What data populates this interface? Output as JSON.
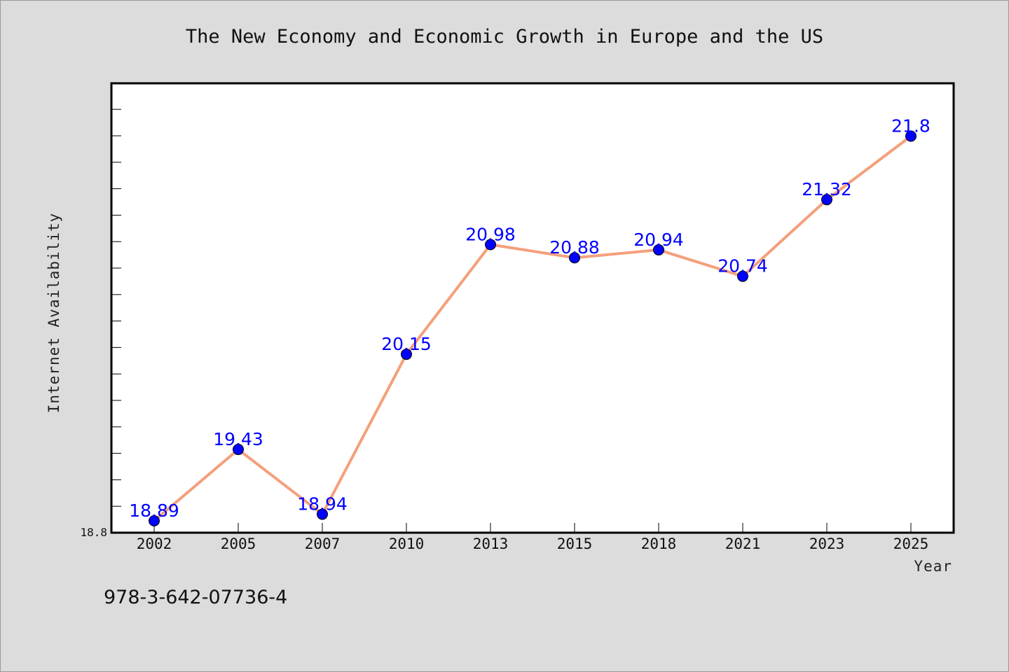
{
  "chart_data": {
    "type": "line",
    "title": "The New Economy and Economic Growth in Europe and the US",
    "xlabel": "Year",
    "ylabel": "Internet Availability",
    "categories": [
      "2002",
      "2005",
      "2007",
      "2010",
      "2013",
      "2015",
      "2018",
      "2021",
      "2023",
      "2025"
    ],
    "series": [
      {
        "values": [
          18.89,
          19.43,
          18.94,
          20.15,
          20.98,
          20.88,
          20.94,
          20.74,
          21.32,
          21.8
        ],
        "data_labels": [
          "18.89",
          "19.43",
          "18.94",
          "20.15",
          "20.98",
          "20.88",
          "20.94",
          "20.74",
          "21.32",
          "21.8"
        ],
        "line_color": "#f4a07c",
        "marker_color": "#0000ff"
      }
    ],
    "ylim": [
      18.8,
      22.2
    ],
    "ytick_labels": [
      "18.8"
    ],
    "grid": false,
    "legend": "none"
  },
  "footer_text": "978-3-642-07736-4",
  "colors": {
    "background": "#dcdcdc",
    "plot_background": "#ffffff",
    "line": "#f4a07c",
    "marker": "#0000ff",
    "data_label": "#0000ff"
  }
}
